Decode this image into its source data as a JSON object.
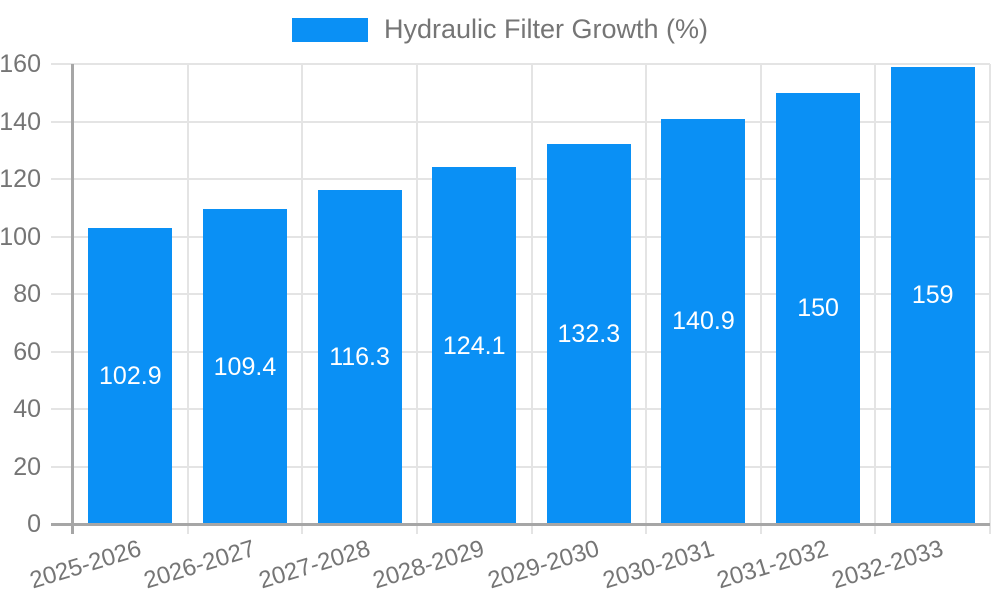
{
  "chart_data": {
    "type": "bar",
    "title": "Hydraulic Filter Growth (%)",
    "legend_position": "top",
    "categories": [
      "2025-2026",
      "2026-2027",
      "2027-2028",
      "2028-2029",
      "2029-2030",
      "2030-2031",
      "2031-2032",
      "2032-2033"
    ],
    "series": [
      {
        "name": "Hydraulic Filter Growth (%)",
        "values": [
          102.9,
          109.4,
          116.3,
          124.1,
          132.3,
          140.9,
          150,
          159
        ]
      }
    ],
    "value_labels": [
      "102.9",
      "109.4",
      "116.3",
      "124.1",
      "132.3",
      "140.9",
      "150",
      "159"
    ],
    "xlabel": "",
    "ylabel": "",
    "ylim": [
      0,
      160
    ],
    "ytick_step": 20,
    "ytick_labels": [
      "0",
      "20",
      "40",
      "60",
      "80",
      "100",
      "120",
      "140",
      "160"
    ],
    "grid": true,
    "colors": {
      "bar": "#0a90f5",
      "value_label": "#ffffff",
      "axis_text": "#757575",
      "grid_line": "#e4e4e4",
      "axis_line": "#a6a6a6",
      "background": "#ffffff"
    }
  }
}
